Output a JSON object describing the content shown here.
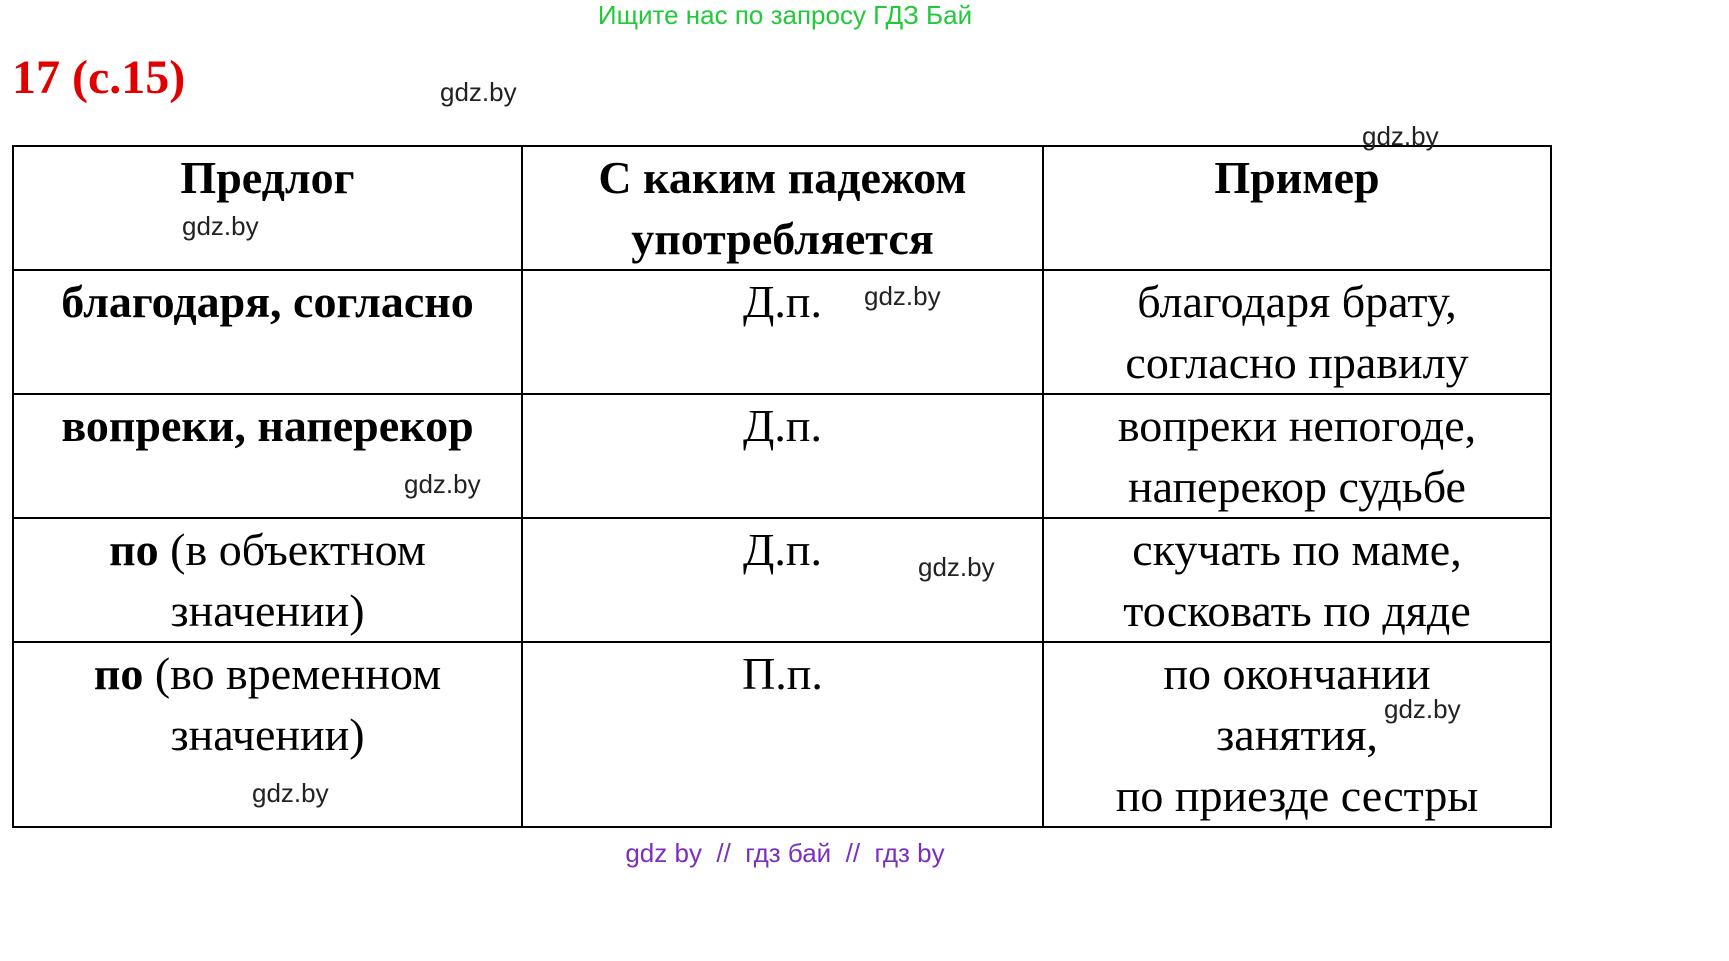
{
  "banner": "Ищите нас по запросу ГДЗ Бай",
  "title": "17 (с.15)",
  "watermark": "gdz.by",
  "headers": [
    "Предлог",
    "С каким падежом употребляется",
    "Пример"
  ],
  "rows": [
    {
      "prep_bold": "благодаря, согласно",
      "prep_rest": "",
      "case": "Д.п.",
      "example": [
        "благодаря брату,",
        "согласно правилу"
      ]
    },
    {
      "prep_bold": "вопреки, наперекор",
      "prep_rest": "",
      "case": "Д.п.",
      "example": [
        "вопреки непогоде,",
        "наперекор судьбе"
      ]
    },
    {
      "prep_bold": "по",
      "prep_rest": " (в объектном значении)",
      "case": "Д.п.",
      "example": [
        "скучать по маме,",
        "тосковать по дяде"
      ]
    },
    {
      "prep_bold": "по",
      "prep_rest": " (во временном значении)",
      "case": "П.п.",
      "example": [
        "по окончании",
        "занятия,",
        "по приезде сестры"
      ]
    }
  ],
  "footer": "gdz by  //  гдз бай  //  гдз by",
  "colors": {
    "banner": "#22c93a",
    "title": "#e00000",
    "footer": "#7b2fbf"
  }
}
